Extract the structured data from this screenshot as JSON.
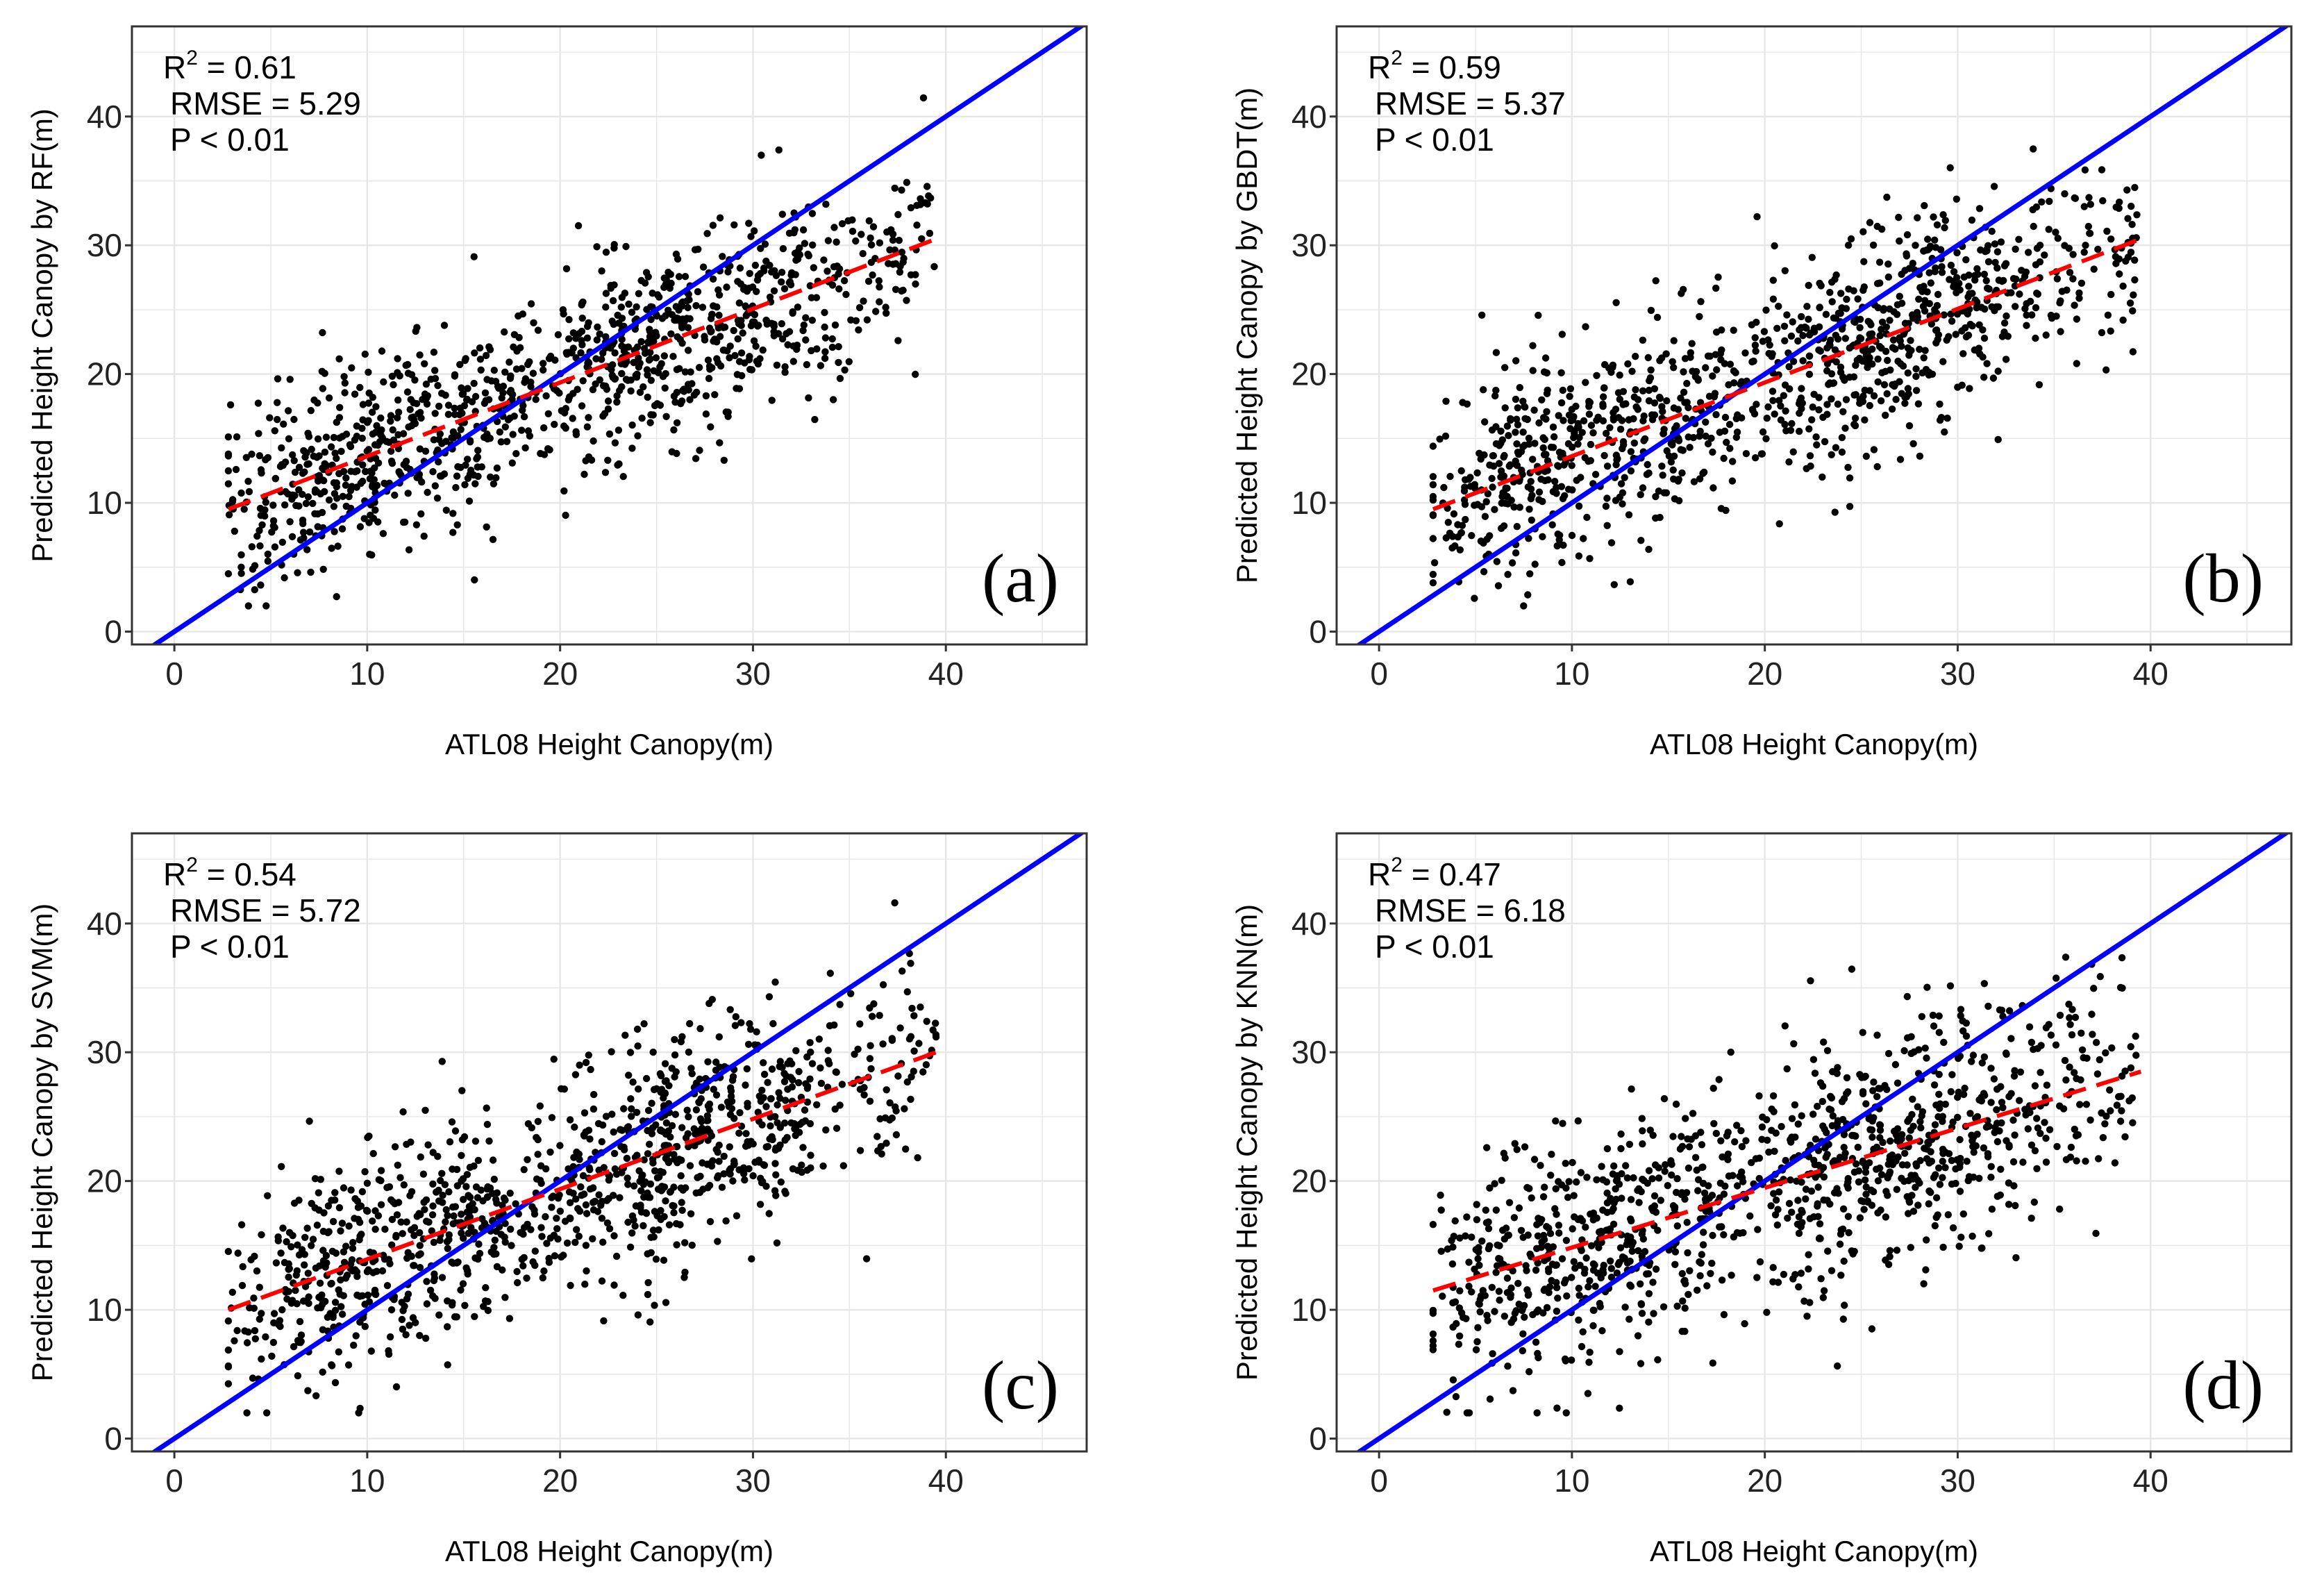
{
  "colors": {
    "identity_line": "#0000ff",
    "fit_line": "#ff0000",
    "points": "#000000",
    "grid": "#e6e6e6",
    "frame": "#333333"
  },
  "chart_data": [
    {
      "type": "scatter",
      "panel_label": "(a)",
      "xlabel": "ATL08 Height Canopy(m)",
      "ylabel": "Predicted Height Canopy by RF(m)",
      "xlim": [
        -2.2,
        47.3
      ],
      "ylim": [
        -1,
        47
      ],
      "xticks": [
        0,
        10,
        20,
        30,
        40
      ],
      "yticks": [
        0,
        10,
        20,
        30,
        40
      ],
      "grid": true,
      "stats": {
        "r2_prefix": "R",
        "r2_sup": "2",
        "r2_rest": " = 0.61",
        "rmse": "RMSE = 5.29",
        "p": "P < 0.01"
      },
      "identity_line": {
        "x": [
          -2.2,
          47.3
        ],
        "y": [
          -2.2,
          47.3
        ]
      },
      "fit_line": {
        "x": [
          2.8,
          39.5
        ],
        "y": [
          9.5,
          30.5
        ]
      },
      "points_model": {
        "seed": 11,
        "n": 1150,
        "x_range": [
          2.8,
          39.5
        ],
        "slope": 0.572,
        "intercept": 7.9,
        "noise_sd": 3.9
      }
    },
    {
      "type": "scatter",
      "panel_label": "(b)",
      "xlabel": "ATL08 Height Canopy(m)",
      "ylabel": "Predicted Height Canopy by GBDT(m)",
      "xlim": [
        -2.2,
        47.3
      ],
      "ylim": [
        -1,
        47
      ],
      "xticks": [
        0,
        10,
        20,
        30,
        40
      ],
      "yticks": [
        0,
        10,
        20,
        30,
        40
      ],
      "grid": true,
      "stats": {
        "r2_prefix": "R",
        "r2_sup": "2",
        "r2_rest": " = 0.59",
        "rmse": "RMSE = 5.37",
        "p": "P < 0.01"
      },
      "identity_line": {
        "x": [
          -2.2,
          47.3
        ],
        "y": [
          -2.2,
          47.3
        ]
      },
      "fit_line": {
        "x": [
          2.8,
          39.5
        ],
        "y": [
          9.5,
          30.5
        ]
      },
      "points_model": {
        "seed": 23,
        "n": 1150,
        "x_range": [
          2.8,
          39.5
        ],
        "slope": 0.572,
        "intercept": 7.9,
        "noise_sd": 4.0
      }
    },
    {
      "type": "scatter",
      "panel_label": "(c)",
      "xlabel": "ATL08 Height Canopy(m)",
      "ylabel": "Predicted Height Canopy by SVM(m)",
      "xlim": [
        -2.2,
        47.3
      ],
      "ylim": [
        -1,
        47
      ],
      "xticks": [
        0,
        10,
        20,
        30,
        40
      ],
      "yticks": [
        0,
        10,
        20,
        30,
        40
      ],
      "grid": true,
      "stats": {
        "r2_prefix": "R",
        "r2_sup": "2",
        "r2_rest": " = 0.54",
        "rmse": "RMSE = 5.72",
        "p": "P < 0.01"
      },
      "identity_line": {
        "x": [
          -2.2,
          47.3
        ],
        "y": [
          -2.2,
          47.3
        ]
      },
      "fit_line": {
        "x": [
          2.8,
          39.5
        ],
        "y": [
          10.0,
          30.0
        ]
      },
      "points_model": {
        "seed": 37,
        "n": 1150,
        "x_range": [
          2.8,
          39.5
        ],
        "slope": 0.545,
        "intercept": 8.5,
        "noise_sd": 4.4
      }
    },
    {
      "type": "scatter",
      "panel_label": "(d)",
      "xlabel": "ATL08 Height Canopy(m)",
      "ylabel": "Predicted Height Canopy by KNN(m)",
      "xlim": [
        -2.2,
        47.3
      ],
      "ylim": [
        -1,
        47
      ],
      "xticks": [
        0,
        10,
        20,
        30,
        40
      ],
      "yticks": [
        0,
        10,
        20,
        30,
        40
      ],
      "grid": true,
      "stats": {
        "r2_prefix": "R",
        "r2_sup": "2",
        "r2_rest": " = 0.47",
        "rmse": "RMSE = 6.18",
        "p": "P < 0.01"
      },
      "identity_line": {
        "x": [
          -2.2,
          47.3
        ],
        "y": [
          -2.2,
          47.3
        ]
      },
      "fit_line": {
        "x": [
          2.8,
          39.5
        ],
        "y": [
          11.5,
          28.5
        ]
      },
      "points_model": {
        "seed": 53,
        "n": 1150,
        "x_range": [
          2.8,
          39.5
        ],
        "slope": 0.463,
        "intercept": 10.2,
        "noise_sd": 4.6
      }
    }
  ]
}
